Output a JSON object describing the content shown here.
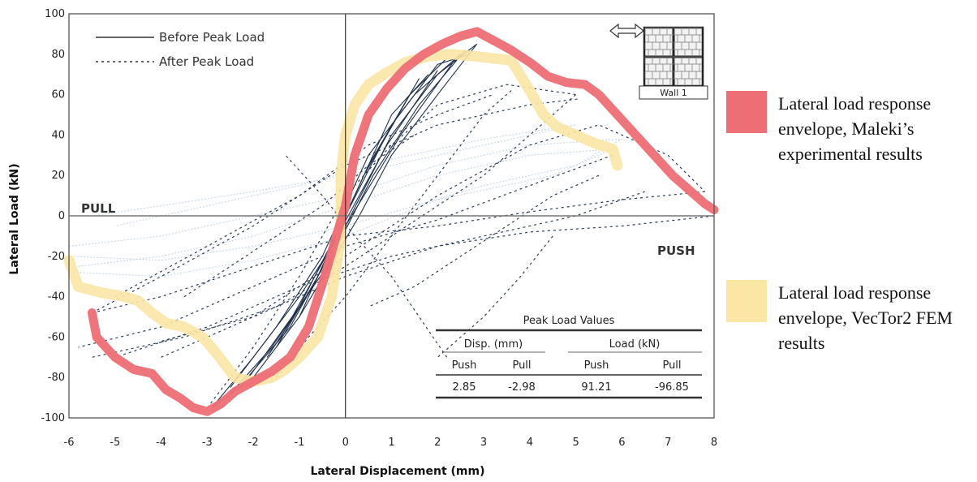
{
  "chart_data": {
    "type": "line",
    "xlabel": "Lateral Displacement (mm)",
    "ylabel": "Lateral Load (kN)",
    "xlim": [
      -6,
      8
    ],
    "ylim": [
      -100,
      100
    ],
    "xticks": [
      "-6",
      "-5",
      "-4",
      "-3",
      "-2",
      "-1",
      "0",
      "1",
      "2",
      "3",
      "4",
      "5",
      "6",
      "7",
      "8"
    ],
    "yticks": [
      "100",
      "80",
      "60",
      "40",
      "20",
      "0",
      "-20",
      "-40",
      "-60",
      "-80",
      "-100"
    ],
    "grid": false,
    "zone_labels": {
      "pull": "PULL",
      "push": "PUSH"
    },
    "inner_legend": [
      {
        "name": "Before Peak Load",
        "style": "solid",
        "color": "#333333"
      },
      {
        "name": "After Peak Load",
        "style": "dotted",
        "color": "#333333"
      }
    ],
    "inset_label": "Wall 1",
    "series": [
      {
        "name": "Lateral load response envelope, Maleki’s experimental results",
        "color": "#ee6e76",
        "x": [
          -5.5,
          -5.4,
          -5.0,
          -4.6,
          -4.2,
          -3.9,
          -3.6,
          -3.3,
          -3.0,
          -2.7,
          -2.4,
          -2.0,
          -1.6,
          -1.2,
          -0.8,
          -0.45,
          -0.2,
          0.0,
          0.2,
          0.5,
          0.9,
          1.3,
          1.7,
          2.1,
          2.5,
          2.85,
          3.2,
          3.6,
          4.0,
          4.4,
          4.8,
          5.2,
          5.5,
          5.9,
          6.3,
          6.7,
          7.1,
          7.5,
          7.8,
          8.0
        ],
        "y": [
          -48,
          -60,
          -70,
          -76,
          -78,
          -86,
          -90,
          -95,
          -96.85,
          -93,
          -87,
          -82,
          -77,
          -70,
          -55,
          -30,
          -10,
          5,
          30,
          50,
          63,
          73,
          80,
          85,
          89,
          91.21,
          87,
          82,
          76,
          69,
          66,
          65,
          60,
          50,
          40,
          30,
          20,
          12,
          6,
          3
        ]
      },
      {
        "name": "Lateral load response envelope, VecTor2 FEM results",
        "color": "#fbe6a5",
        "x": [
          -6.0,
          -5.8,
          -5.3,
          -4.8,
          -4.5,
          -4.2,
          -3.9,
          -3.5,
          -3.1,
          -2.8,
          -2.4,
          -2.0,
          -1.6,
          -1.3,
          -1.0,
          -0.6,
          -0.3,
          -0.1,
          -0.1,
          0.0,
          0.2,
          0.5,
          0.9,
          1.3,
          1.8,
          2.3,
          2.8,
          3.2,
          3.6,
          4.0,
          4.3,
          4.6,
          5.0,
          5.4,
          5.8,
          5.9
        ],
        "y": [
          -22,
          -35,
          -38,
          -40,
          -42,
          -48,
          -53,
          -55,
          -60,
          -68,
          -80,
          -82,
          -80,
          -76,
          -70,
          -60,
          -40,
          -10,
          20,
          40,
          55,
          65,
          71,
          76,
          79,
          80,
          79,
          78,
          77,
          62,
          50,
          44,
          40,
          36,
          33,
          25
        ]
      }
    ],
    "table": {
      "title": "Peak Load Values",
      "group_headers": [
        "Disp. (mm)",
        "Load (kN)"
      ],
      "sub_headers": [
        "Push",
        "Pull",
        "Push",
        "Pull"
      ],
      "values": [
        "2.85",
        "-2.98",
        "91.21",
        "-96.85"
      ]
    }
  },
  "legend": {
    "maleki": {
      "label": "Lateral load response envelope, Maleki’s experimental results",
      "color": "#ee6e76"
    },
    "vector2": {
      "label": "Lateral load response envelope, VecTor2 FEM results",
      "color": "#fbe6a5"
    }
  }
}
